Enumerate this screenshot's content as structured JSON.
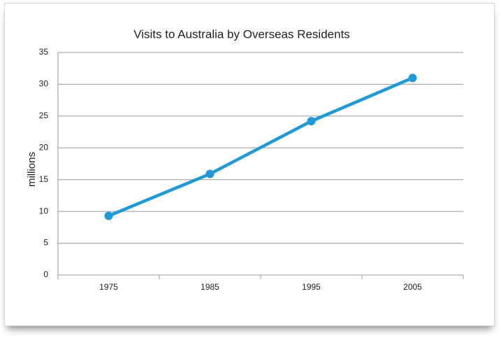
{
  "chart_data": {
    "type": "line",
    "title": "Visits to Australia by Overseas Residents",
    "y_label": "millions",
    "categories": [
      "1975",
      "1985",
      "1995",
      "2005"
    ],
    "values": [
      9.3,
      15.9,
      24.2,
      31.0
    ],
    "color": "#1f9ad6",
    "ylim": [
      0,
      35
    ],
    "yticks": [
      0,
      5,
      10,
      15,
      20,
      25,
      30,
      35
    ],
    "grid": true
  }
}
